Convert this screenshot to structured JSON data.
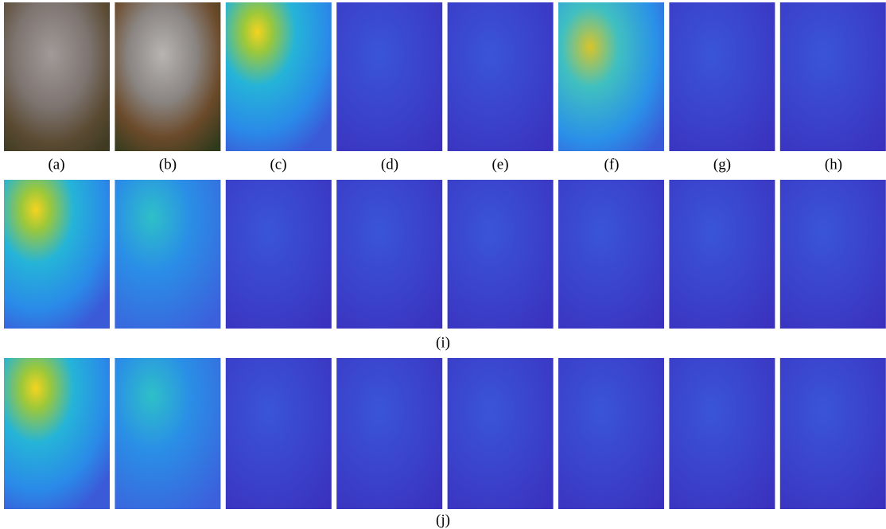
{
  "figure": {
    "rows": [
      {
        "labels": [
          "(a)",
          "(b)",
          "(c)",
          "(d)",
          "(e)",
          "(f)",
          "(g)",
          "(h)"
        ]
      },
      {
        "label": "(i)"
      },
      {
        "label": "(j)"
      }
    ]
  }
}
